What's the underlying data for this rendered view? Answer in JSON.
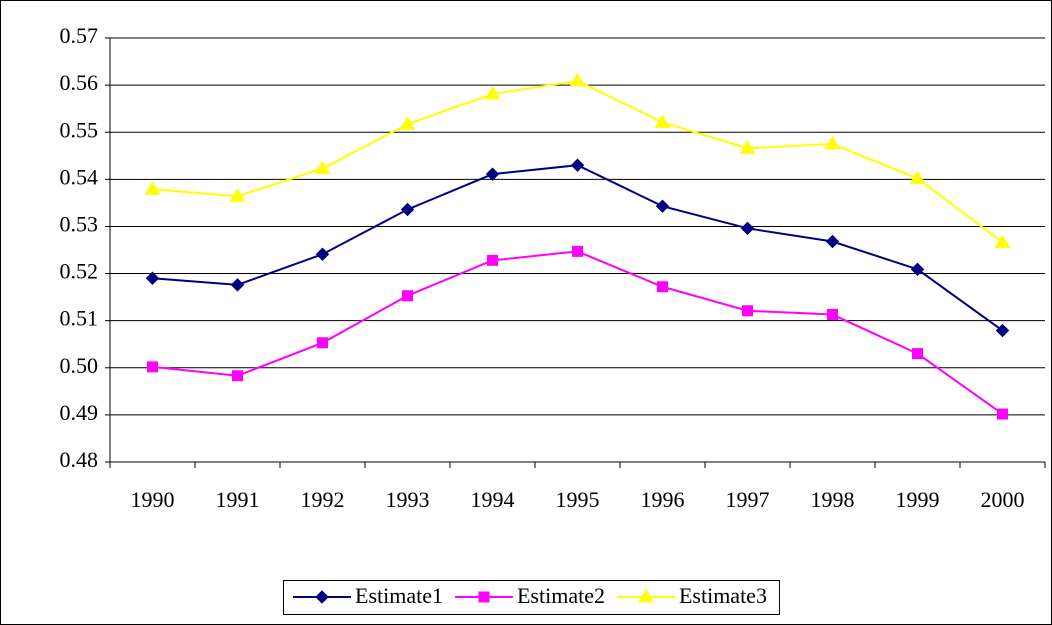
{
  "chart_data": {
    "type": "line",
    "categories": [
      "1990",
      "1991",
      "1992",
      "1993",
      "1994",
      "1995",
      "1996",
      "1997",
      "1998",
      "1999",
      "2000"
    ],
    "series": [
      {
        "name": "Estimate1",
        "color": "#000080",
        "marker": "diamond",
        "values": [
          0.519,
          0.5176,
          0.5241,
          0.5336,
          0.5411,
          0.543,
          0.5343,
          0.5296,
          0.5268,
          0.5209,
          0.5079
        ]
      },
      {
        "name": "Estimate2",
        "color": "#ff00ff",
        "marker": "square",
        "values": [
          0.5002,
          0.4983,
          0.5053,
          0.5153,
          0.5228,
          0.5247,
          0.5172,
          0.5121,
          0.5113,
          0.503,
          0.4902
        ]
      },
      {
        "name": "Estimate3",
        "color": "#ffff00",
        "marker": "triangle",
        "values": [
          0.5379,
          0.5364,
          0.5423,
          0.5517,
          0.5581,
          0.5609,
          0.5521,
          0.5466,
          0.5475,
          0.5402,
          0.5266
        ]
      }
    ],
    "ylim": [
      0.48,
      0.57
    ],
    "yticks": [
      0.48,
      0.49,
      {
        "value": 0.5,
        "label": "0.50"
      },
      0.51,
      0.52,
      0.53,
      0.54,
      0.55,
      0.56,
      0.57
    ],
    "grid": true,
    "legend": "bottom"
  }
}
